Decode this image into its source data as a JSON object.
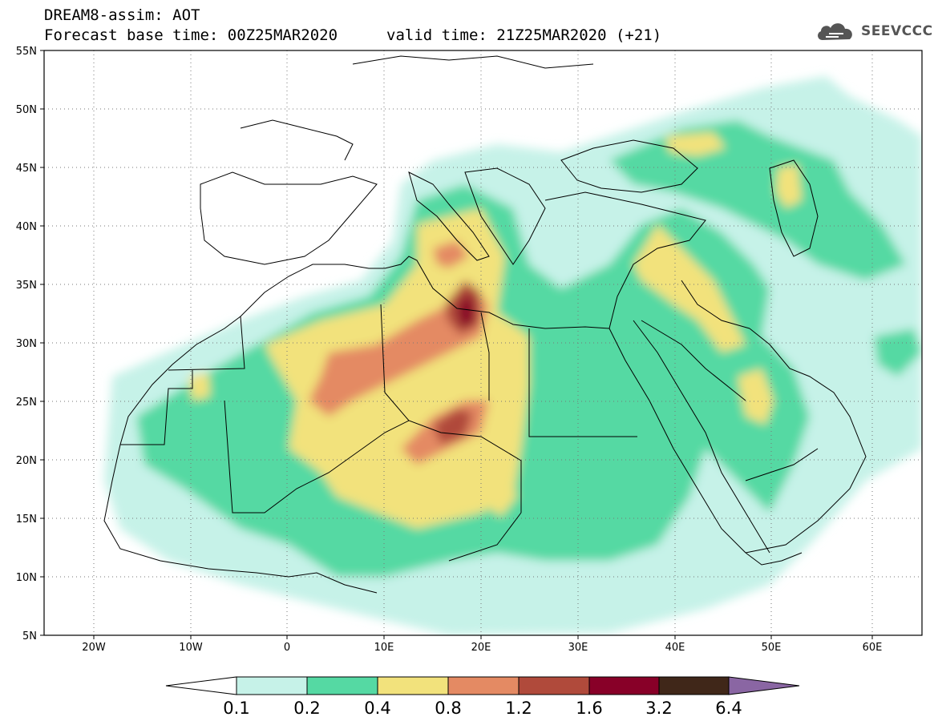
{
  "header": {
    "line1": "DREAM8-assim: AOT",
    "line2": "Forecast base time: 00Z25MAR2020",
    "valid": "valid time: 21Z25MAR2020 (+21)",
    "logo_text": "SEEVCCC"
  },
  "axes": {
    "lon_labels": [
      "20W",
      "10W",
      "0",
      "10E",
      "20E",
      "30E",
      "40E",
      "50E",
      "60E"
    ],
    "lat_labels": [
      "55N",
      "50N",
      "45N",
      "40N",
      "35N",
      "30N",
      "25N",
      "20N",
      "15N",
      "10N",
      "5N"
    ],
    "lon_range": [
      -25,
      65
    ],
    "lat_range": [
      5,
      55
    ]
  },
  "colorbar": {
    "labels": [
      "0.1",
      "0.2",
      "0.4",
      "0.8",
      "1.2",
      "1.6",
      "3.2",
      "6.4"
    ],
    "colors": [
      "#ffffff",
      "#c6f2e8",
      "#55d9a3",
      "#f2e27c",
      "#e48a63",
      "#b04a3b",
      "#880028",
      "#402719",
      "#8a66a3"
    ]
  }
}
